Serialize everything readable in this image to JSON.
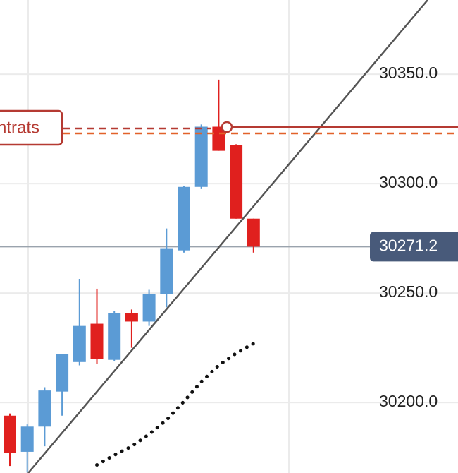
{
  "chart_data": {
    "type": "candlestick",
    "ylim": [
      30167.8,
      30383.9
    ],
    "yticks": [
      {
        "value": 30200,
        "label": "30200.0"
      },
      {
        "value": 30250,
        "label": "30250.0"
      },
      {
        "value": 30300,
        "label": "30300.0"
      },
      {
        "value": 30350,
        "label": "30350.0"
      }
    ],
    "grid": true,
    "up_color": "#5b9bd5",
    "down_color": "#e0201e",
    "open": [
      30194,
      30177.5,
      30189,
      30205,
      30218.5,
      30236,
      30219.5,
      30241,
      30237,
      30249.5,
      30269.5,
      30298.5,
      30326,
      30317.5,
      30284
    ],
    "high": [
      30195,
      30190,
      30207,
      30222,
      30256.5,
      30252,
      30242,
      30242.5,
      30251.5,
      30279.5,
      30299,
      30327,
      30347.5,
      30318,
      30284
    ],
    "low": [
      30171,
      30168,
      30180,
      30194,
      30217,
      30217.5,
      30219,
      30225,
      30235,
      30243.5,
      30268.5,
      30297.5,
      30315,
      30284,
      30268.5
    ],
    "close": [
      30177,
      30189,
      30205.5,
      30222,
      30235,
      30220,
      30241,
      30237,
      30249.5,
      30270.5,
      30298.5,
      30326,
      30315,
      30284,
      30271.2
    ],
    "moving_average": {
      "color": "#111111",
      "values": [
        null,
        null,
        null,
        null,
        null,
        30171.5,
        30176,
        30180,
        30185.5,
        30192,
        30200.5,
        30209.5,
        30217,
        30222.5,
        30227
      ]
    },
    "last_price": 30271.2,
    "last_price_color": "#485a7a",
    "annotation": "ntrats"
  }
}
